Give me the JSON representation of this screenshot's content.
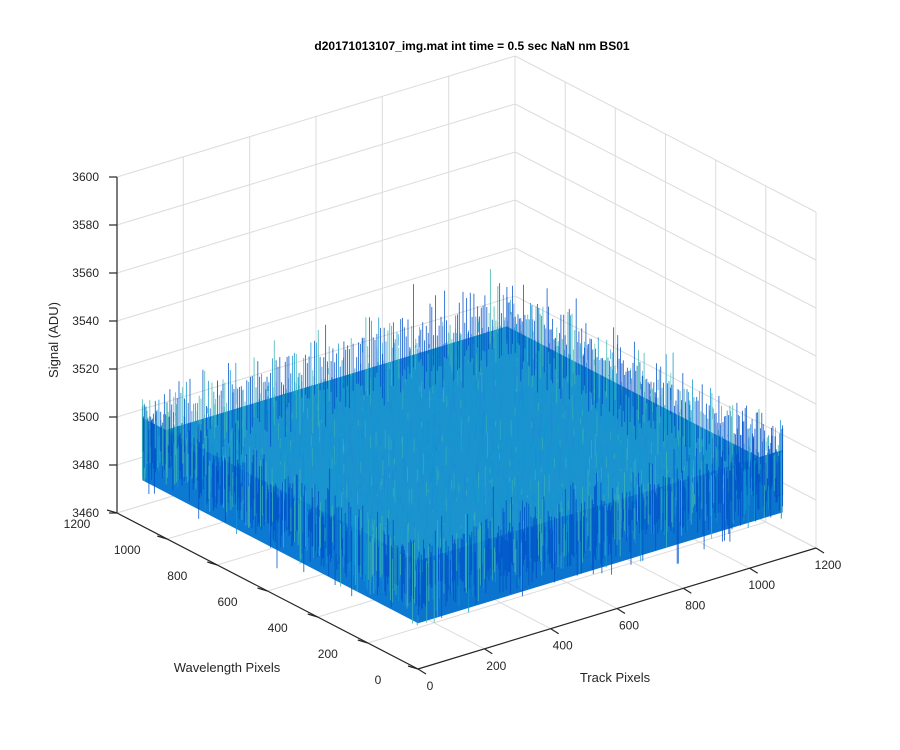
{
  "chart_data": {
    "type": "surface",
    "title": "d20171013107_img.mat int time = 0.5 sec  NaN nm BS01",
    "xlabel": "Track Pixels",
    "ylabel": "Wavelength Pixels",
    "zlabel": "Signal (ADU)",
    "xlim": [
      0,
      1200
    ],
    "ylim": [
      0,
      1200
    ],
    "zlim": [
      3460,
      3600
    ],
    "xticks": [
      0,
      200,
      400,
      600,
      800,
      1000,
      1200
    ],
    "yticks": [
      0,
      200,
      400,
      600,
      800,
      1000,
      1200
    ],
    "zticks": [
      3460,
      3480,
      3500,
      3520,
      3540,
      3560,
      3580,
      3600
    ],
    "x_range": [
      1,
      1100
    ],
    "y_range": [
      1,
      1100
    ],
    "z_mean": 3497,
    "z_noise_range": [
      3470,
      3560
    ],
    "grid": true,
    "colormap": "parula",
    "colors": {
      "low": "#0050c8",
      "mid": "#1095d2",
      "high": "#3fb6b0"
    }
  }
}
